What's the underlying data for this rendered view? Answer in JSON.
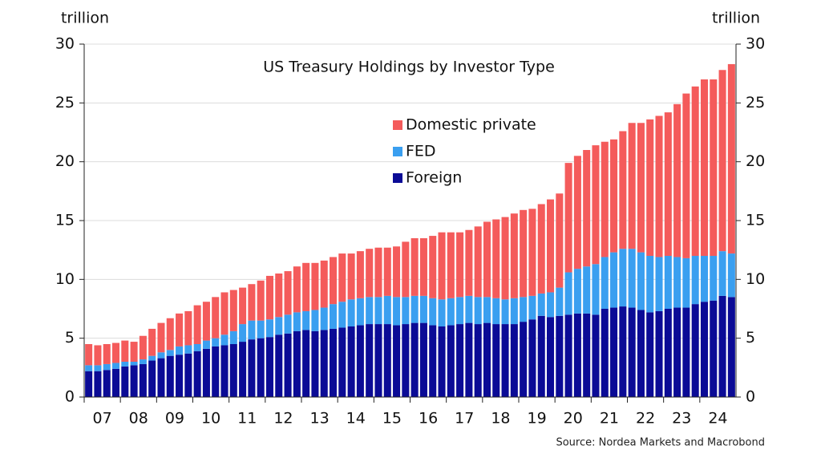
{
  "chart_data": {
    "type": "stacked_bar",
    "title": "US Treasury Holdings by Investor Type",
    "y_label": "trillion",
    "y2_label": "trillion",
    "source": "Source: Nordea Markets and Macrobond",
    "categories": [
      "07",
      null,
      null,
      null,
      "08",
      null,
      null,
      null,
      "09",
      null,
      null,
      null,
      "10",
      null,
      null,
      null,
      "11",
      null,
      null,
      null,
      "12",
      null,
      null,
      null,
      "13",
      null,
      null,
      null,
      "14",
      null,
      null,
      null,
      "15",
      null,
      null,
      null,
      "16",
      null,
      null,
      null,
      "17",
      null,
      null,
      null,
      "18",
      null,
      null,
      null,
      "19",
      null,
      null,
      null,
      "20",
      null,
      null,
      null,
      "21",
      null,
      null,
      null,
      "22",
      null,
      null,
      null,
      "23",
      null,
      null,
      null,
      "24",
      null,
      null,
      null
    ],
    "series": [
      {
        "name": "Foreign",
        "color": "#0b0b96",
        "values": [
          2.2,
          2.2,
          2.3,
          2.4,
          2.6,
          2.7,
          2.8,
          3.1,
          3.3,
          3.5,
          3.6,
          3.7,
          3.9,
          4.1,
          4.3,
          4.4,
          4.5,
          4.7,
          4.9,
          5.0,
          5.1,
          5.3,
          5.4,
          5.6,
          5.7,
          5.6,
          5.7,
          5.8,
          5.9,
          6.0,
          6.1,
          6.2,
          6.2,
          6.2,
          6.1,
          6.2,
          6.3,
          6.3,
          6.1,
          6.0,
          6.1,
          6.2,
          6.3,
          6.2,
          6.3,
          6.2,
          6.2,
          6.2,
          6.4,
          6.6,
          6.9,
          6.8,
          6.9,
          7.0,
          7.1,
          7.1,
          7.0,
          7.5,
          7.6,
          7.7,
          7.6,
          7.4,
          7.2,
          7.3,
          7.5,
          7.6,
          7.6,
          7.9,
          8.1,
          8.2,
          8.6,
          8.5
        ]
      },
      {
        "name": "FED",
        "color": "#3a9ff0",
        "values": [
          0.5,
          0.5,
          0.5,
          0.5,
          0.4,
          0.3,
          0.4,
          0.4,
          0.5,
          0.5,
          0.7,
          0.7,
          0.6,
          0.7,
          0.7,
          0.9,
          1.1,
          1.5,
          1.6,
          1.5,
          1.5,
          1.5,
          1.6,
          1.6,
          1.6,
          1.8,
          1.9,
          2.1,
          2.2,
          2.3,
          2.3,
          2.3,
          2.3,
          2.4,
          2.4,
          2.3,
          2.3,
          2.3,
          2.3,
          2.3,
          2.3,
          2.3,
          2.3,
          2.3,
          2.2,
          2.2,
          2.1,
          2.2,
          2.1,
          2.0,
          1.9,
          2.1,
          2.4,
          3.6,
          3.8,
          4.0,
          4.3,
          4.4,
          4.7,
          4.9,
          5.0,
          4.9,
          4.8,
          4.6,
          4.5,
          4.3,
          4.2,
          4.1,
          3.9,
          3.8,
          3.8,
          3.7
        ]
      },
      {
        "name": "Domestic private",
        "color": "#f45b5b",
        "values": [
          1.8,
          1.7,
          1.7,
          1.7,
          1.8,
          1.7,
          2.0,
          2.3,
          2.5,
          2.7,
          2.8,
          2.9,
          3.3,
          3.3,
          3.5,
          3.6,
          3.5,
          3.1,
          3.1,
          3.4,
          3.7,
          3.7,
          3.7,
          3.9,
          4.1,
          4.0,
          4.0,
          4.0,
          4.1,
          3.9,
          4.0,
          4.1,
          4.2,
          4.1,
          4.3,
          4.7,
          4.9,
          4.9,
          5.3,
          5.7,
          5.6,
          5.5,
          5.6,
          6.0,
          6.4,
          6.7,
          7.0,
          7.2,
          7.4,
          7.4,
          7.6,
          7.9,
          8.0,
          9.3,
          9.6,
          9.9,
          10.1,
          9.8,
          9.6,
          10.0,
          10.7,
          11.0,
          11.6,
          12.0,
          12.2,
          13.0,
          14.0,
          14.4,
          15.0,
          15.0,
          15.4,
          16.1
        ]
      }
    ],
    "ylim": [
      0,
      30
    ],
    "yticks": [
      0,
      5,
      10,
      15,
      20,
      25,
      30
    ],
    "y2lim": [
      0,
      30
    ],
    "y2ticks": [
      0,
      5,
      10,
      15,
      20,
      25,
      30
    ],
    "grid": true
  }
}
